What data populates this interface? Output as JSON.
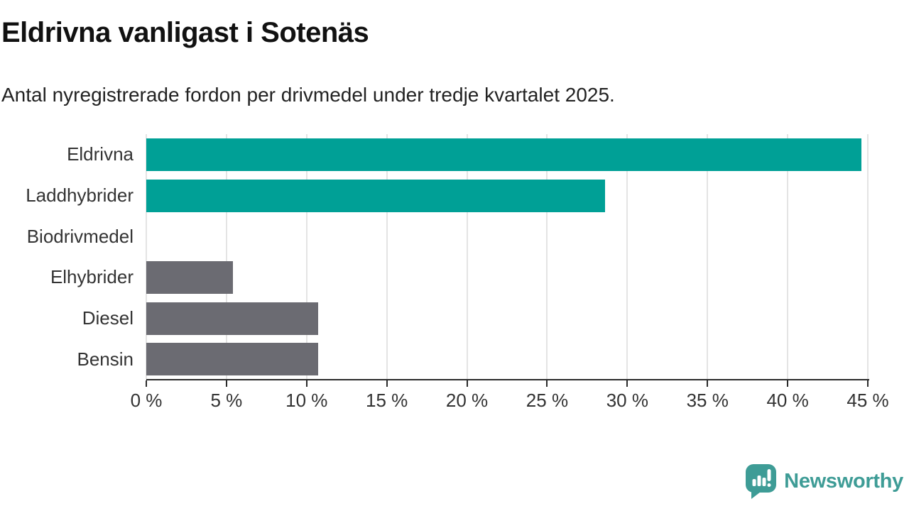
{
  "page": {
    "title": "Eldrivna vanligast i Sotenäs",
    "subtitle": "Antal nyregistrerade fordon per drivmedel under tredje kvartalet 2025."
  },
  "chart_data": {
    "type": "bar",
    "orientation": "horizontal",
    "title": "Eldrivna vanligast i Sotenäs",
    "subtitle": "Antal nyregistrerade fordon per drivmedel under tredje kvartalet 2025.",
    "categories": [
      "Eldrivna",
      "Laddhybrider",
      "Biodrivmedel",
      "Elhybrider",
      "Diesel",
      "Bensin"
    ],
    "values": [
      44.6,
      28.6,
      0,
      5.4,
      10.7,
      10.7
    ],
    "unit": "%",
    "xlabel": "",
    "ylabel": "",
    "xlim": [
      0,
      45
    ],
    "x_ticks": [
      0,
      5,
      10,
      15,
      20,
      25,
      30,
      35,
      40,
      45
    ],
    "x_tick_labels": [
      "0 %",
      "5 %",
      "10 %",
      "15 %",
      "20 %",
      "25 %",
      "30 %",
      "35 %",
      "40 %",
      "45 %"
    ],
    "grid": "vertical-only",
    "legend": "none",
    "bar_colors": [
      "#00A096",
      "#00A096",
      "#6B6B72",
      "#6B6B72",
      "#6B6B72",
      "#6B6B72"
    ],
    "highlight_color": "#00A096",
    "default_color": "#6B6B72",
    "gridline_color": "#e4e4e4",
    "axis_color": "#2b2b2b"
  },
  "branding": {
    "logo_text": "Newsworthy",
    "logo_color": "#3E9C96",
    "logo_icon": "newsworthy-speech-bubble-chart-icon"
  }
}
